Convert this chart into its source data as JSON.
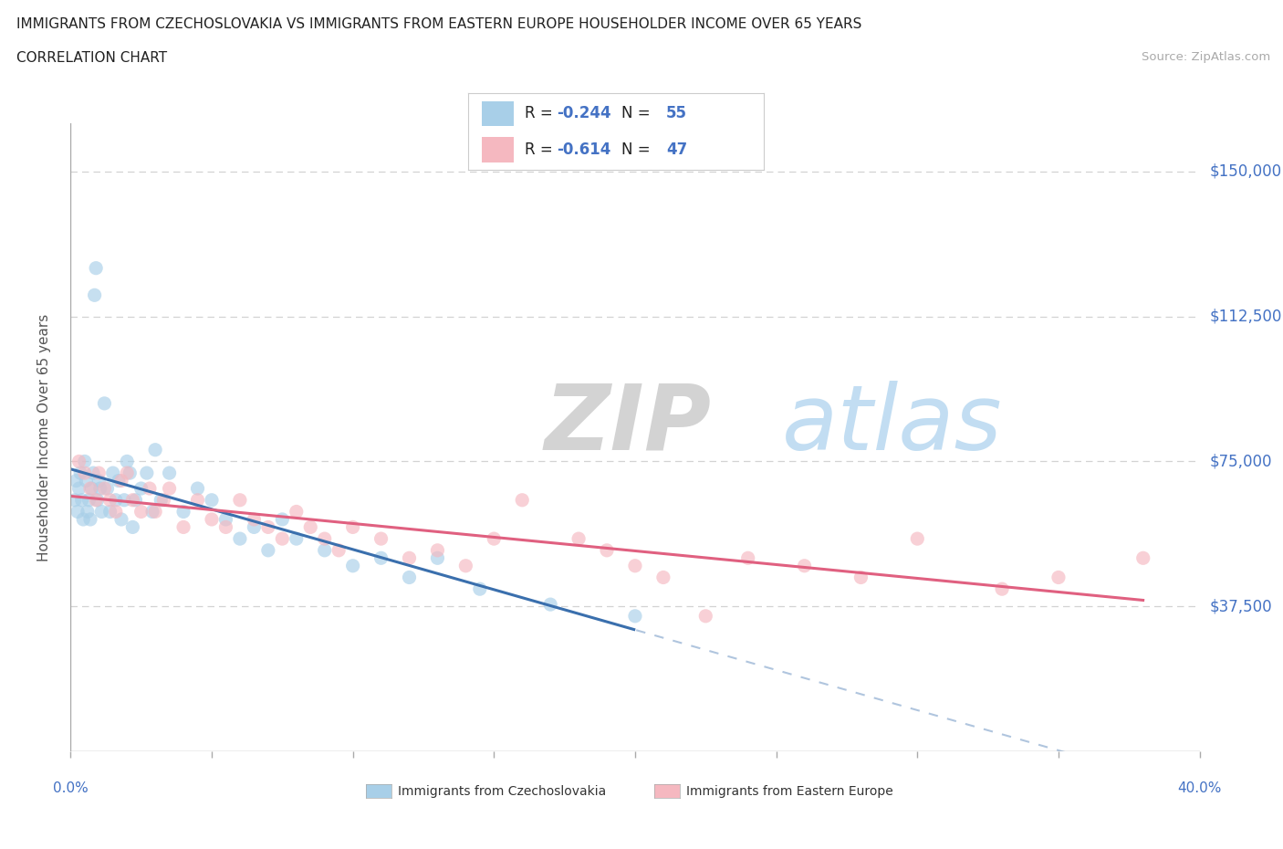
{
  "title": "IMMIGRANTS FROM CZECHOSLOVAKIA VS IMMIGRANTS FROM EASTERN EUROPE HOUSEHOLDER INCOME OVER 65 YEARS",
  "subtitle": "CORRELATION CHART",
  "source": "Source: ZipAtlas.com",
  "ylabel": "Householder Income Over 65 years",
  "watermark_zip": "ZIP",
  "watermark_atlas": "atlas",
  "series": [
    {
      "label": "Immigrants from Czechoslovakia",
      "R": -0.244,
      "N": 55,
      "dot_color": "#a8cfe8",
      "line_color": "#3a6fad",
      "x": [
        0.15,
        0.2,
        0.25,
        0.3,
        0.35,
        0.4,
        0.45,
        0.5,
        0.55,
        0.6,
        0.65,
        0.7,
        0.75,
        0.8,
        0.85,
        0.9,
        0.95,
        1.0,
        1.05,
        1.1,
        1.2,
        1.3,
        1.4,
        1.5,
        1.6,
        1.7,
        1.8,
        1.9,
        2.0,
        2.1,
        2.2,
        2.3,
        2.5,
        2.7,
        2.9,
        3.0,
        3.2,
        3.5,
        4.0,
        4.5,
        5.0,
        5.5,
        6.0,
        6.5,
        7.0,
        7.5,
        8.0,
        9.0,
        10.0,
        11.0,
        12.0,
        13.0,
        14.5,
        17.0,
        20.0
      ],
      "y": [
        65000,
        70000,
        62000,
        68000,
        72000,
        65000,
        60000,
        75000,
        70000,
        62000,
        65000,
        60000,
        68000,
        72000,
        118000,
        125000,
        65000,
        70000,
        68000,
        62000,
        90000,
        68000,
        62000,
        72000,
        65000,
        70000,
        60000,
        65000,
        75000,
        72000,
        58000,
        65000,
        68000,
        72000,
        62000,
        78000,
        65000,
        72000,
        62000,
        68000,
        65000,
        60000,
        55000,
        58000,
        52000,
        60000,
        55000,
        52000,
        48000,
        50000,
        45000,
        50000,
        42000,
        38000,
        35000
      ]
    },
    {
      "label": "Immigrants from Eastern Europe",
      "R": -0.614,
      "N": 47,
      "dot_color": "#f5b8c0",
      "line_color": "#e06080",
      "x": [
        0.3,
        0.5,
        0.7,
        0.9,
        1.0,
        1.2,
        1.4,
        1.6,
        1.8,
        2.0,
        2.2,
        2.5,
        2.8,
        3.0,
        3.3,
        3.5,
        4.0,
        4.5,
        5.0,
        5.5,
        6.0,
        6.5,
        7.0,
        7.5,
        8.0,
        8.5,
        9.0,
        9.5,
        10.0,
        11.0,
        12.0,
        13.0,
        14.0,
        15.0,
        16.0,
        18.0,
        19.0,
        20.0,
        21.0,
        22.5,
        24.0,
        26.0,
        28.0,
        30.0,
        33.0,
        35.0,
        38.0
      ],
      "y": [
        75000,
        72000,
        68000,
        65000,
        72000,
        68000,
        65000,
        62000,
        70000,
        72000,
        65000,
        62000,
        68000,
        62000,
        65000,
        68000,
        58000,
        65000,
        60000,
        58000,
        65000,
        60000,
        58000,
        55000,
        62000,
        58000,
        55000,
        52000,
        58000,
        55000,
        50000,
        52000,
        48000,
        55000,
        65000,
        55000,
        52000,
        48000,
        45000,
        35000,
        50000,
        48000,
        45000,
        55000,
        42000,
        45000,
        50000
      ]
    }
  ],
  "ylim": [
    0,
    162500
  ],
  "xlim": [
    0,
    40
  ],
  "yticks": [
    0,
    37500,
    75000,
    112500,
    150000
  ],
  "ytick_labels": [
    "",
    "$37,500",
    "$75,000",
    "$112,500",
    "$150,000"
  ],
  "xtick_positions": [
    0,
    5,
    10,
    15,
    20,
    25,
    30,
    35,
    40
  ],
  "grid_color": "#c8c8c8",
  "background_color": "#ffffff",
  "title_color": "#333333",
  "yaxis_color": "#5585c5",
  "legend_R_color": "#e05070",
  "legend_num_color": "#4472c4"
}
